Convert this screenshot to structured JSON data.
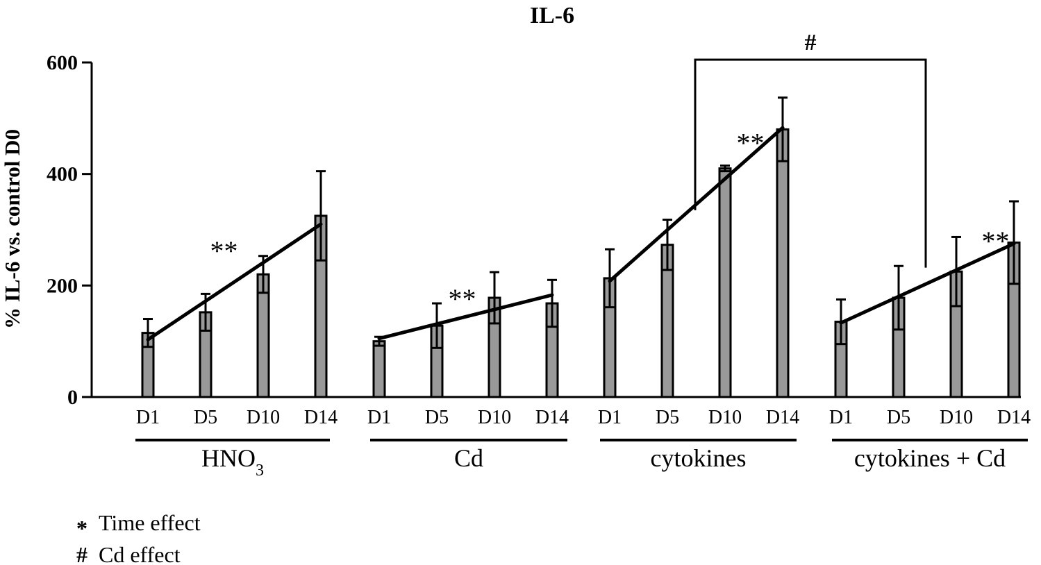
{
  "chart_data": {
    "type": "bar",
    "title": "IL-6",
    "ylabel": "% IL-6 vs. control D0",
    "xlabel": "",
    "ylim": [
      0,
      600
    ],
    "yticks": [
      0,
      200,
      400,
      600
    ],
    "grid": false,
    "categories": [
      "D1",
      "D5",
      "D10",
      "D14"
    ],
    "groups": [
      {
        "name": "HNO",
        "name_sub": "3",
        "values": [
          115,
          152,
          220,
          325
        ],
        "errors": [
          25,
          33,
          33,
          80
        ],
        "trend": [
          103,
          310
        ],
        "significance": "**"
      },
      {
        "name": "Cd",
        "name_sub": "",
        "values": [
          100,
          128,
          178,
          168
        ],
        "errors": [
          8,
          40,
          46,
          42
        ],
        "trend": [
          105,
          183
        ],
        "significance": "**"
      },
      {
        "name": "cytokines",
        "name_sub": "",
        "values": [
          213,
          273,
          410,
          480
        ],
        "errors": [
          52,
          45,
          5,
          57
        ],
        "trend": [
          208,
          483
        ],
        "significance": "**"
      },
      {
        "name": "cytokines + Cd",
        "name_sub": "",
        "values": [
          135,
          178,
          225,
          277
        ],
        "errors": [
          40,
          57,
          62,
          74
        ],
        "trend": [
          133,
          275
        ],
        "significance": "**"
      }
    ],
    "bracket": {
      "label": "#",
      "between": [
        "cytokines",
        "cytokines + Cd"
      ]
    },
    "legend": [
      {
        "symbol": "*",
        "label": "Time effect"
      },
      {
        "symbol": "#",
        "label": "Cd effect"
      }
    ],
    "colors": {
      "bar": "#999999",
      "stroke": "#000000"
    }
  }
}
